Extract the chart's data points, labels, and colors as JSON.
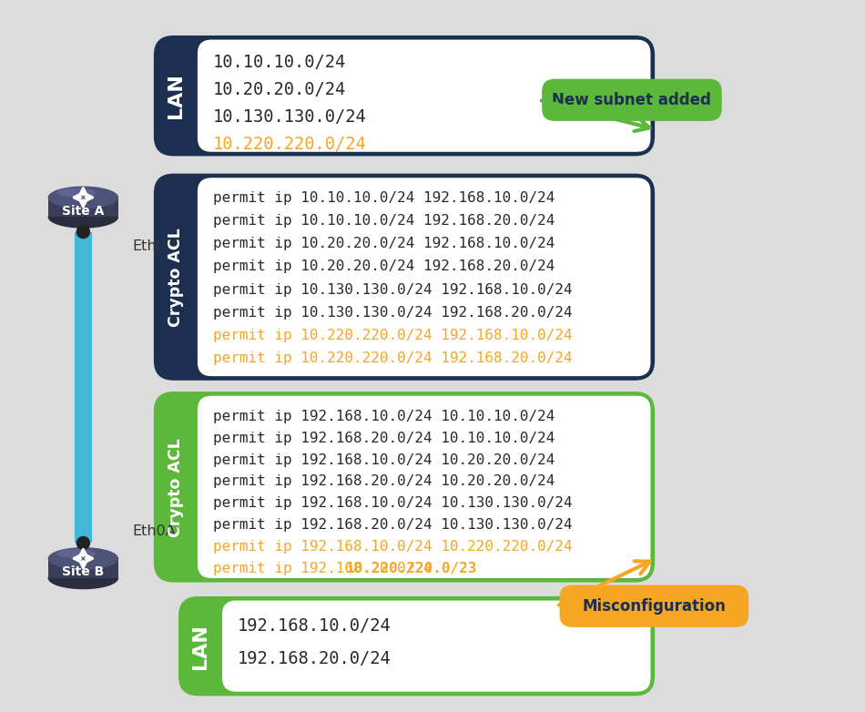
{
  "bg_color": "#dcdcdc",
  "dark_navy": "#1c2f50",
  "green_color": "#5cb83a",
  "orange_color": "#f5a623",
  "white_color": "#ffffff",
  "text_dark": "#2a2a2a",
  "blue_link": "#42b8d8",
  "router_top": "#4e5478",
  "router_mid": "#3a3e58",
  "router_bot": "#2a2c40",
  "site_a_label": "Site A",
  "site_b_label": "Site B",
  "eth0a_label": "Eth0A",
  "lan_a_subnets": [
    "10.10.10.0/24",
    "10.20.20.0/24",
    "10.130.130.0/24",
    "10.220.220.0/24"
  ],
  "lan_a_orange_idx": 3,
  "crypto_acl_a_lines": [
    "permit ip 10.10.10.0/24 192.168.10.0/24",
    "permit ip 10.10.10.0/24 192.168.20.0/24",
    "permit ip 10.20.20.0/24 192.168.10.0/24",
    "permit ip 10.20.20.0/24 192.168.20.0/24",
    "permit ip 10.130.130.0/24 192.168.10.0/24",
    "permit ip 10.130.130.0/24 192.168.20.0/24",
    "permit ip 10.220.220.0/24 192.168.10.0/24",
    "permit ip 10.220.220.0/24 192.168.20.0/24"
  ],
  "crypto_acl_a_orange_idx": [
    6,
    7
  ],
  "crypto_acl_b_lines": [
    "permit ip 192.168.10.0/24 10.10.10.0/24",
    "permit ip 192.168.20.0/24 10.10.10.0/24",
    "permit ip 192.168.10.0/24 10.20.20.0/24",
    "permit ip 192.168.20.0/24 10.20.20.0/24",
    "permit ip 192.168.10.0/24 10.130.130.0/24",
    "permit ip 192.168.20.0/24 10.130.130.0/24",
    "permit ip 192.168.10.0/24 10.220.220.0/24",
    "permit ip 192.168.20.0/24 10.220.220.0/23"
  ],
  "crypto_acl_b_orange_idx": [
    6,
    7
  ],
  "crypto_acl_b_bold_last": true,
  "lan_b_subnets": [
    "192.168.10.0/24",
    "192.168.20.0/24"
  ],
  "new_subnet_label": "New subnet added",
  "misconfig_label": "Misconfiguration",
  "lan_label": "LAN",
  "crypto_acl_label": "Crypto ACL"
}
